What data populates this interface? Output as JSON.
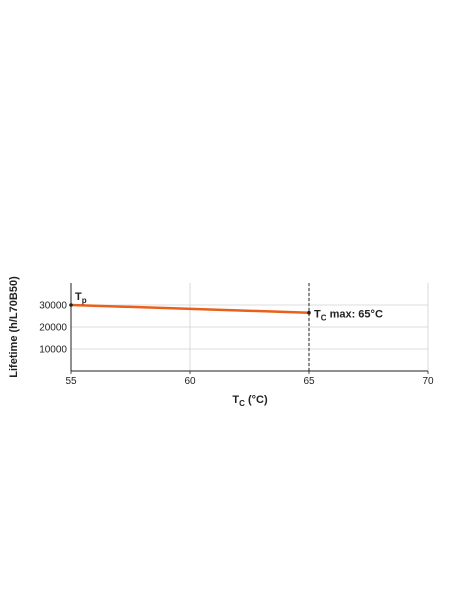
{
  "chart_data": {
    "type": "line",
    "x_label": {
      "base": "T",
      "sub": "C",
      "rest": " (°C)"
    },
    "y_label": "Lifetime (h/L70B50)",
    "x": [
      55,
      65
    ],
    "series": [
      {
        "color": "#e8601c",
        "values": [
          30000,
          26500
        ]
      }
    ],
    "xlim": [
      55,
      70
    ],
    "ylim": [
      0,
      40000
    ],
    "xticks": [
      55,
      60,
      65,
      70
    ],
    "yticks": [
      10000,
      20000,
      30000
    ],
    "grid": true,
    "start_label": {
      "base": "T",
      "sub": "p"
    },
    "vline": {
      "x": 65,
      "label": {
        "base": "T",
        "sub": "C",
        "rest": " max: 65°C"
      }
    }
  }
}
